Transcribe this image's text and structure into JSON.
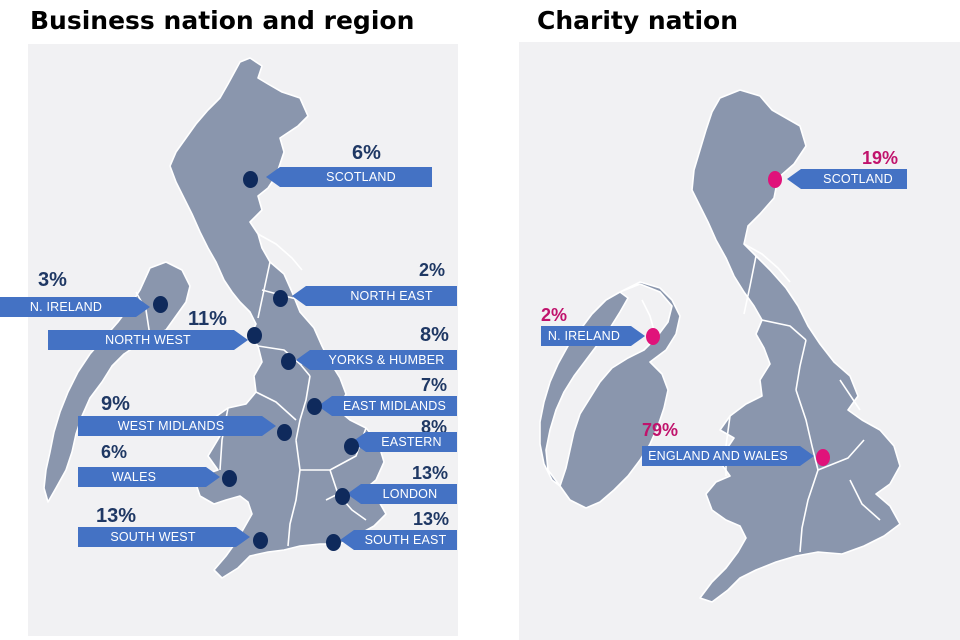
{
  "business": {
    "title": "Business nation and region",
    "regions": [
      {
        "key": "scotland",
        "label": "SCOTLAND",
        "value": "6%"
      },
      {
        "key": "n-ireland",
        "label": "N. IRELAND",
        "value": "3%"
      },
      {
        "key": "north-east",
        "label": "NORTH EAST",
        "value": "2%"
      },
      {
        "key": "north-west",
        "label": "NORTH WEST",
        "value": "11%"
      },
      {
        "key": "yorks-humber",
        "label": "YORKS & HUMBER",
        "value": "8%"
      },
      {
        "key": "east-midlands",
        "label": "EAST MIDLANDS",
        "value": "7%"
      },
      {
        "key": "west-midlands",
        "label": "WEST MIDLANDS",
        "value": "9%"
      },
      {
        "key": "eastern",
        "label": "EASTERN",
        "value": "8%"
      },
      {
        "key": "wales",
        "label": "WALES",
        "value": "6%"
      },
      {
        "key": "london",
        "label": "LONDON",
        "value": "13%"
      },
      {
        "key": "south-west",
        "label": "SOUTH WEST",
        "value": "13%"
      },
      {
        "key": "south-east",
        "label": "SOUTH EAST",
        "value": "13%"
      }
    ]
  },
  "charity": {
    "title": "Charity nation",
    "regions": [
      {
        "key": "scotland",
        "label": "SCOTLAND",
        "value": "19%"
      },
      {
        "key": "n-ireland",
        "label": "N. IRELAND",
        "value": "2%"
      },
      {
        "key": "england-wales",
        "label": "ENGLAND AND WALES",
        "value": "79%"
      }
    ]
  },
  "colors": {
    "land": "#8a96ad",
    "label_fill": "#4472c4",
    "business_value": "#1f3864",
    "business_marker": "#0f2a5c",
    "charity_value": "#c0136c",
    "charity_marker": "#e0127a",
    "map_background": "#f1f1f3"
  }
}
